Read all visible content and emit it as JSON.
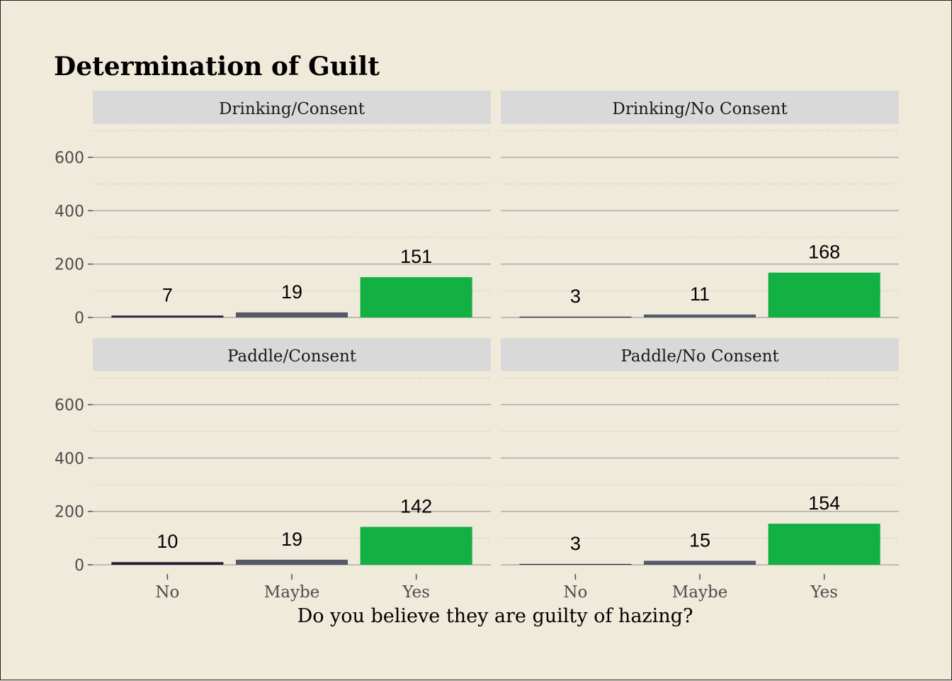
{
  "chart_data": {
    "type": "bar",
    "title": "Determination of Guilt",
    "xlabel": "Do you believe they are guilty of hazing?",
    "ylabel": "",
    "categories": [
      "No",
      "Maybe",
      "Yes"
    ],
    "ylim": [
      0,
      700
    ],
    "yticks": [
      "0",
      "200",
      "400",
      "600"
    ],
    "grid": true,
    "colors": {
      "No": "#2b1a3d",
      "Maybe": "#54596a",
      "Yes": "#13b043"
    },
    "panels": [
      {
        "name": "Drinking/Consent",
        "values": [
          7,
          19,
          151
        ]
      },
      {
        "name": "Drinking/No Consent",
        "values": [
          3,
          11,
          168
        ]
      },
      {
        "name": "Paddle/Consent",
        "values": [
          10,
          19,
          142
        ]
      },
      {
        "name": "Paddle/No Consent",
        "values": [
          3,
          15,
          154
        ]
      }
    ]
  }
}
